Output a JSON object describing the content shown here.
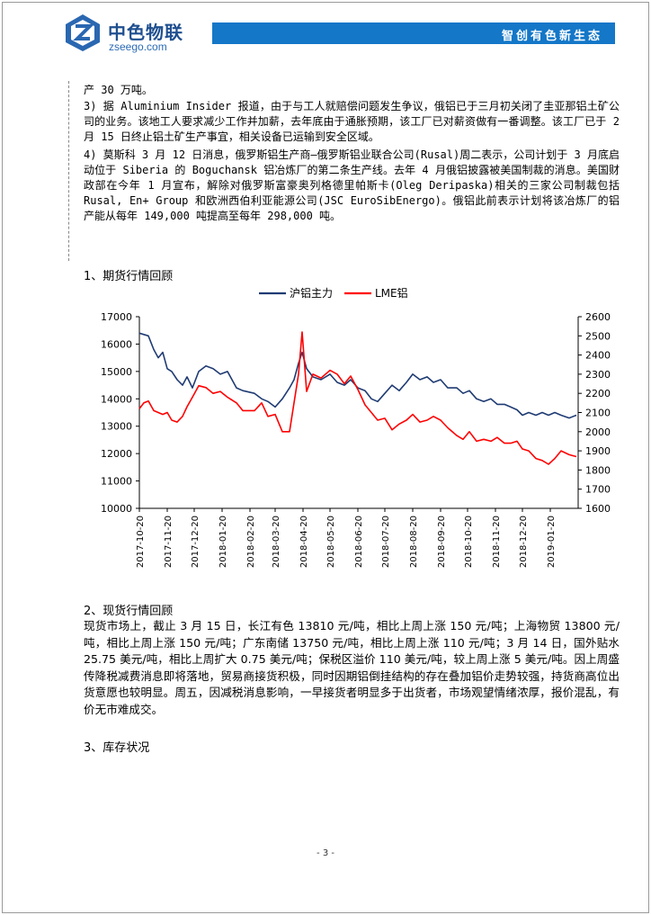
{
  "header": {
    "brand_name": "中色物联",
    "brand_sub": "zseego.com",
    "slogan": "智创有色新生态"
  },
  "news": {
    "line_top": "产 30 万吨。",
    "item3": "3) 据 Aluminium Insider 报道，由于与工人就赔偿问题发生争议，俄铝已于三月初关闭了圭亚那铝土矿公司的业务。该地工人要求减少工作并加薪，去年底由于通胀预期，该工厂已对薪资做有一番调整。该工厂已于 2 月 15 日终止铝土矿生产事宜，相关设备已运输到安全区域。",
    "item4": "4) 莫斯科 3 月 12 日消息，俄罗斯铝生产商—俄罗斯铝业联合公司(Rusal)周二表示，公司计划于 3 月底启动位于 Siberia 的 Boguchansk 铝冶炼厂的第二条生产线。去年 4 月俄铝披露被美国制裁的消息。美国财政部在今年 1 月宣布，解除对俄罗斯富豪奥列格德里帕斯卡(Oleg Deripaska)相关的三家公司制裁包括 Rusal, En+ Group 和欧洲西伯利亚能源公司(JSC EuroSibEnergo)。俄铝此前表示计划将该冶炼厂的铝产能从每年 149,000 吨提高至每年 298,000 吨。"
  },
  "sections": {
    "s1": "1、期货行情回顾",
    "s2": "2、现货行情回顾",
    "s3": "3、库存状况"
  },
  "spot_review": "现货市场上，截止 3 月 15 日，长江有色 13810 元/吨，相比上周上涨 150 元/吨；上海物贸 13800 元/吨，相比上周上涨 150 元/吨；广东南储 13750 元/吨，相比上周上涨 110 元/吨；3 月 14 日，国外贴水 25.75 美元/吨，相比上周扩大 0.75 美元/吨；保税区溢价 110 美元/吨，较上周上涨 5 美元/吨。因上周盛传降税减费消息即将落地，贸易商接货积极，同时因期铝倒挂结构的存在叠加铝价走势较强，持货商高位出货意愿也较明显。周五，因减税消息影响，一早接货者明显多于出货者，市场观望情绪浓厚，报价混乱，有价无市难成交。",
  "page_number": "- 3 -",
  "colors": {
    "brand": "#1f4f8f",
    "banner": "#1477c8",
    "series_shfe": "#1f3b73",
    "series_lme": "#ff0000"
  },
  "chart_data": {
    "type": "line",
    "title": "",
    "legend_position": "top",
    "x_tick_labels": [
      "2017-10-20",
      "2017-11-20",
      "2017-12-20",
      "2018-01-20",
      "2018-02-20",
      "2018-03-20",
      "2018-04-20",
      "2018-05-20",
      "2018-06-20",
      "2018-07-20",
      "2018-08-20",
      "2018-09-20",
      "2018-10-20",
      "2018-11-20",
      "2018-12-20",
      "2019-01-20"
    ],
    "y_left": {
      "min": 10000,
      "max": 17000,
      "ticks": [
        "10000",
        "11000",
        "12000",
        "13000",
        "14000",
        "15000",
        "16000",
        "17000"
      ]
    },
    "y_right": {
      "min": 1600,
      "max": 2600,
      "ticks": [
        "1600",
        "1700",
        "1800",
        "1900",
        "2000",
        "2100",
        "2200",
        "2300",
        "2400",
        "2500",
        "2600"
      ]
    },
    "grid": false,
    "series": [
      {
        "name": "沪铝主力",
        "axis": "left",
        "x": [
          "2017-10-20",
          "2017-10-25",
          "2017-10-30",
          "2017-11-05",
          "2017-11-10",
          "2017-11-15",
          "2017-11-20",
          "2017-11-25",
          "2017-12-01",
          "2017-12-07",
          "2017-12-12",
          "2017-12-18",
          "2017-12-25",
          "2018-01-02",
          "2018-01-10",
          "2018-01-18",
          "2018-01-26",
          "2018-02-05",
          "2018-02-12",
          "2018-02-25",
          "2018-03-05",
          "2018-03-12",
          "2018-03-20",
          "2018-03-28",
          "2018-04-05",
          "2018-04-10",
          "2018-04-15",
          "2018-04-19",
          "2018-04-24",
          "2018-05-01",
          "2018-05-10",
          "2018-05-20",
          "2018-05-28",
          "2018-06-05",
          "2018-06-12",
          "2018-06-20",
          "2018-06-28",
          "2018-07-05",
          "2018-07-12",
          "2018-07-20",
          "2018-07-28",
          "2018-08-05",
          "2018-08-13",
          "2018-08-20",
          "2018-08-28",
          "2018-09-05",
          "2018-09-12",
          "2018-09-20",
          "2018-09-28",
          "2018-10-08",
          "2018-10-15",
          "2018-10-22",
          "2018-10-30",
          "2018-11-07",
          "2018-11-15",
          "2018-11-22",
          "2018-11-30",
          "2018-12-07",
          "2018-12-14",
          "2018-12-20",
          "2018-12-27",
          "2019-01-04",
          "2019-01-11",
          "2019-01-18",
          "2019-01-25",
          "2019-02-01",
          "2019-02-10",
          "2019-02-18"
        ],
        "values": [
          16400,
          16350,
          16300,
          15800,
          15500,
          15700,
          15100,
          15000,
          14700,
          14500,
          14800,
          14400,
          15000,
          15200,
          15100,
          14900,
          15000,
          14400,
          14300,
          14200,
          14000,
          13900,
          13700,
          14000,
          14400,
          14700,
          15300,
          15700,
          15100,
          14800,
          14700,
          14900,
          14600,
          14500,
          14700,
          14400,
          14300,
          14000,
          13900,
          14200,
          14500,
          14300,
          14600,
          14900,
          14700,
          14800,
          14600,
          14700,
          14400,
          14400,
          14200,
          14300,
          14000,
          13900,
          14000,
          13800,
          13800,
          13700,
          13600,
          13400,
          13500,
          13400,
          13500,
          13400,
          13500,
          13400,
          13300,
          13400
        ]
      },
      {
        "name": "LME铝",
        "axis": "right",
        "x": [
          "2017-10-20",
          "2017-10-25",
          "2017-10-30",
          "2017-11-05",
          "2017-11-10",
          "2017-11-15",
          "2017-11-20",
          "2017-11-25",
          "2017-12-01",
          "2017-12-07",
          "2017-12-12",
          "2017-12-18",
          "2017-12-25",
          "2018-01-02",
          "2018-01-10",
          "2018-01-18",
          "2018-01-26",
          "2018-02-05",
          "2018-02-12",
          "2018-02-25",
          "2018-03-05",
          "2018-03-12",
          "2018-03-20",
          "2018-03-28",
          "2018-04-05",
          "2018-04-10",
          "2018-04-15",
          "2018-04-19",
          "2018-04-24",
          "2018-05-01",
          "2018-05-10",
          "2018-05-20",
          "2018-05-28",
          "2018-06-05",
          "2018-06-12",
          "2018-06-20",
          "2018-06-28",
          "2018-07-05",
          "2018-07-12",
          "2018-07-20",
          "2018-07-28",
          "2018-08-05",
          "2018-08-13",
          "2018-08-20",
          "2018-08-28",
          "2018-09-05",
          "2018-09-12",
          "2018-09-20",
          "2018-09-28",
          "2018-10-08",
          "2018-10-15",
          "2018-10-22",
          "2018-10-30",
          "2018-11-07",
          "2018-11-15",
          "2018-11-22",
          "2018-11-30",
          "2018-12-07",
          "2018-12-14",
          "2018-12-20",
          "2018-12-27",
          "2019-01-04",
          "2019-01-11",
          "2019-01-18",
          "2019-01-25",
          "2019-02-01",
          "2019-02-10",
          "2019-02-18"
        ],
        "values": [
          2120,
          2150,
          2160,
          2110,
          2100,
          2090,
          2100,
          2060,
          2050,
          2080,
          2130,
          2180,
          2240,
          2230,
          2200,
          2210,
          2180,
          2150,
          2110,
          2110,
          2150,
          2080,
          2090,
          2000,
          2000,
          2150,
          2300,
          2520,
          2210,
          2300,
          2280,
          2320,
          2300,
          2250,
          2290,
          2220,
          2140,
          2100,
          2060,
          2070,
          2010,
          2040,
          2060,
          2090,
          2050,
          2060,
          2080,
          2060,
          2020,
          1980,
          1960,
          2000,
          1950,
          1960,
          1950,
          1970,
          1940,
          1940,
          1950,
          1910,
          1900,
          1860,
          1850,
          1830,
          1860,
          1900,
          1880,
          1870
        ]
      }
    ]
  }
}
